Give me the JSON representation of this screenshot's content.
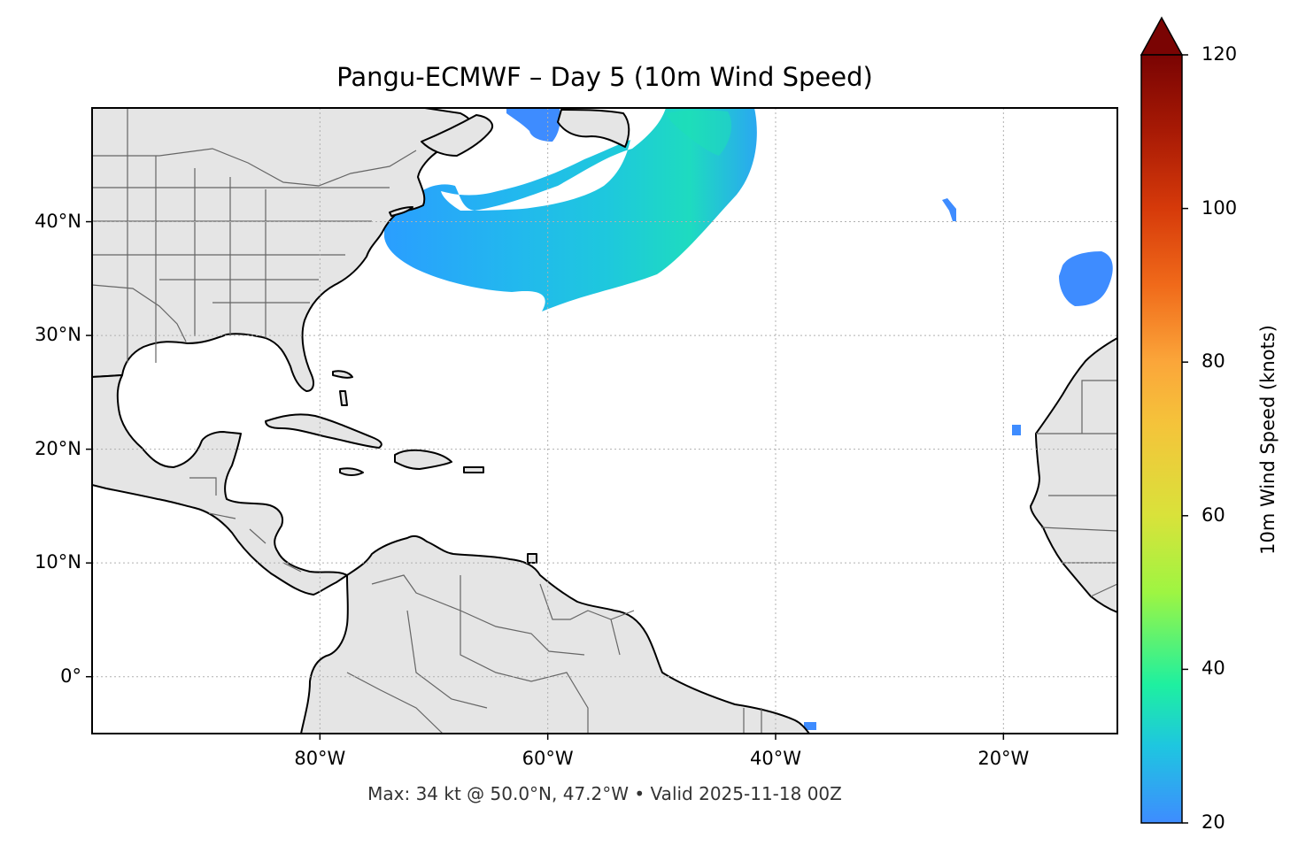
{
  "title": "Pangu-ECMWF – Day 5 (10m Wind Speed)",
  "footer": "Max: 34 kt @ 50.0°N, 47.2°W • Valid 2025-11-18 00Z",
  "map": {
    "extent": {
      "lon_min": -100,
      "lon_max": -10,
      "lat_min": -5,
      "lat_max": 50
    },
    "lat_ticks": [
      {
        "value": 40,
        "label": "40°N"
      },
      {
        "value": 30,
        "label": "30°N"
      },
      {
        "value": 20,
        "label": "20°N"
      },
      {
        "value": 10,
        "label": "10°N"
      },
      {
        "value": 0,
        "label": "0°"
      }
    ],
    "lon_ticks": [
      {
        "value": -80,
        "label": "80°W"
      },
      {
        "value": -60,
        "label": "60°W"
      },
      {
        "value": -40,
        "label": "40°W"
      },
      {
        "value": -20,
        "label": "20°W"
      }
    ],
    "gridlines": true,
    "land_color": "#e5e5e5",
    "coast_color": "#000000",
    "border_color": "#666666",
    "max_point": {
      "speed_kt": 34,
      "lat": 50.0,
      "lon": -47.2
    }
  },
  "colorbar": {
    "label": "10m Wind Speed (knots)",
    "min": 20,
    "max": 120,
    "extend": "max",
    "ticks": [
      {
        "value": 20,
        "label": "20"
      },
      {
        "value": 40,
        "label": "40"
      },
      {
        "value": 60,
        "label": "60"
      },
      {
        "value": 80,
        "label": "80"
      },
      {
        "value": 100,
        "label": "100"
      },
      {
        "value": 120,
        "label": "120"
      }
    ],
    "stops": [
      {
        "value": 20,
        "color": "#3e8cff"
      },
      {
        "value": 30,
        "color": "#1ec6e0"
      },
      {
        "value": 38,
        "color": "#1ef0a0"
      },
      {
        "value": 50,
        "color": "#9ef542"
      },
      {
        "value": 60,
        "color": "#d9e23a"
      },
      {
        "value": 72,
        "color": "#f5c33a"
      },
      {
        "value": 80,
        "color": "#fba63a"
      },
      {
        "value": 90,
        "color": "#f06a1a"
      },
      {
        "value": 100,
        "color": "#d63a0a"
      },
      {
        "value": 110,
        "color": "#a81a05"
      },
      {
        "value": 120,
        "color": "#7a0403"
      }
    ],
    "extend_color": "#7a0403"
  },
  "wind_regions": [
    {
      "name": "NW Atlantic wind arc",
      "max_kt": 34
    },
    {
      "name": "Central Atlantic patch",
      "max_kt": 22
    },
    {
      "name": "East Atlantic patch",
      "max_kt": 22
    }
  ]
}
